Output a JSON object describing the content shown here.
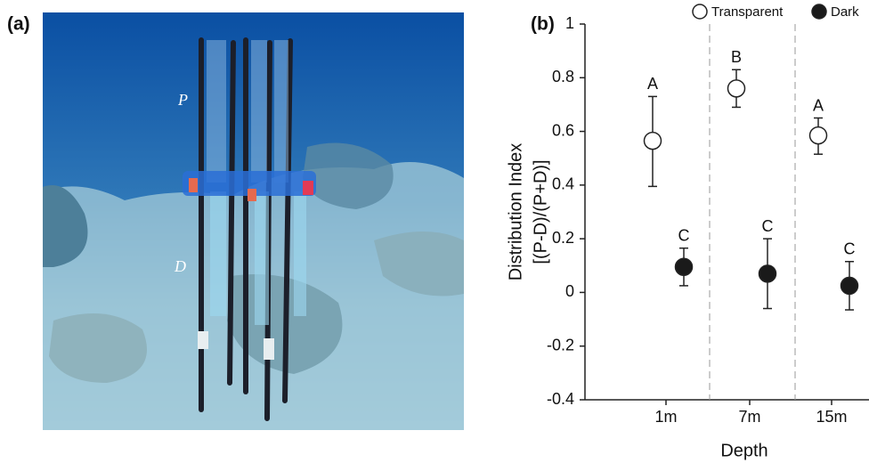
{
  "panel_a": {
    "label": "(a)",
    "marks": [
      "P",
      "D"
    ]
  },
  "chart_data": {
    "type": "scatter",
    "panel_label": "(b)",
    "y_label": [
      "Distribution Index",
      "[(P-D)/(P+D)]"
    ],
    "x_label": "Depth",
    "categories": [
      "1m",
      "7m",
      "15m"
    ],
    "ylim": [
      -0.4,
      1
    ],
    "yticks": [
      -0.4,
      -0.2,
      0,
      0.2,
      0.4,
      0.6,
      0.8,
      1
    ],
    "legend": "top-right",
    "series": [
      {
        "name": "Transparent",
        "color": "#ffffff",
        "values": [
          0.565,
          0.76,
          0.585
        ],
        "lower": [
          0.395,
          0.69,
          0.515
        ],
        "upper": [
          0.73,
          0.83,
          0.65
        ],
        "letters": [
          "A",
          "B",
          "A"
        ]
      },
      {
        "name": "Dark",
        "color": "#1a1a1a",
        "values": [
          0.095,
          0.07,
          0.025
        ],
        "lower": [
          0.025,
          -0.06,
          -0.065
        ],
        "upper": [
          0.165,
          0.2,
          0.115
        ],
        "letters": [
          "C",
          "C",
          "C"
        ]
      }
    ]
  }
}
